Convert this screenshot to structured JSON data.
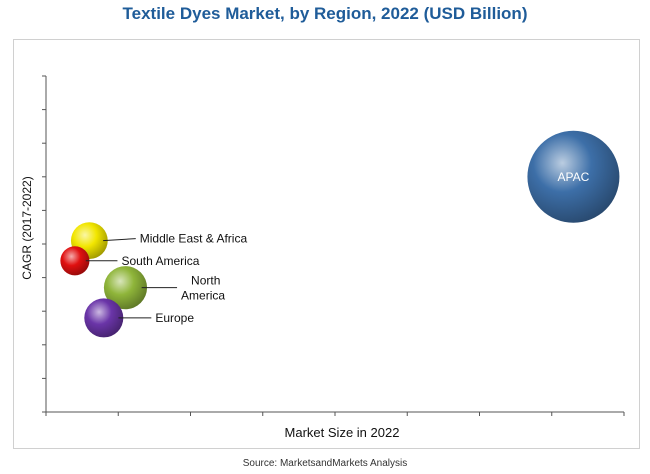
{
  "page": {
    "title": "Textile Dyes Market, by Region, 2022 (USD Billion)",
    "source": "Source: MarketsandMarkets Analysis"
  },
  "colors": {
    "title": "#1f5c99",
    "axis": "#555555"
  },
  "chart_data": {
    "type": "bubble",
    "title": "Textile Dyes Market, by Region, 2022 (USD Billion)",
    "xlabel": "Market Size in 2022",
    "ylabel": "CAGR (2017-2022)",
    "grid": false,
    "tick_labels_shown": false,
    "x_tick_count": 8,
    "y_tick_count": 10,
    "xlim": [
      0,
      8
    ],
    "ylim": [
      0,
      10
    ],
    "note": "Axes carry no numeric tick labels; values are relative positions read against tick marks.",
    "series": [
      {
        "name": "APAC",
        "x": 7.3,
        "y": 7.0,
        "size": 10,
        "color": "#3d6fa8",
        "label_inside": true
      },
      {
        "name": "Middle East & Africa",
        "x": 0.6,
        "y": 5.1,
        "size": 1.6,
        "color": "#f2e600"
      },
      {
        "name": "South America",
        "x": 0.4,
        "y": 4.5,
        "size": 1.0,
        "color": "#e01010"
      },
      {
        "name": "North America",
        "x": 1.1,
        "y": 3.7,
        "size": 2.2,
        "color": "#8fb53a"
      },
      {
        "name": "Europe",
        "x": 0.8,
        "y": 2.8,
        "size": 1.8,
        "color": "#6a35a8"
      }
    ]
  }
}
